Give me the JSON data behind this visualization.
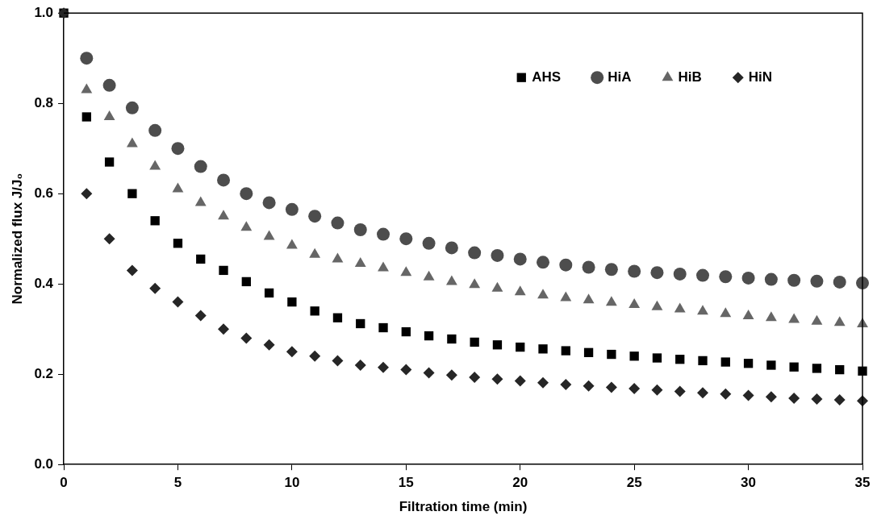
{
  "chart_data": {
    "type": "scatter",
    "xlabel": "Filtration time (min)",
    "ylabel": "Normalized flux J/J₀",
    "x": [
      0,
      1,
      2,
      3,
      4,
      5,
      6,
      7,
      8,
      9,
      10,
      11,
      12,
      13,
      14,
      15,
      16,
      17,
      18,
      19,
      20,
      21,
      22,
      23,
      24,
      25,
      26,
      27,
      28,
      29,
      30,
      31,
      32,
      33,
      34,
      35
    ],
    "series": [
      {
        "name": "AHS",
        "color": "#000000",
        "marker": "square",
        "values": [
          1.0,
          0.77,
          0.67,
          0.6,
          0.54,
          0.49,
          0.455,
          0.43,
          0.405,
          0.38,
          0.36,
          0.34,
          0.325,
          0.312,
          0.303,
          0.294,
          0.285,
          0.278,
          0.271,
          0.265,
          0.26,
          0.256,
          0.252,
          0.248,
          0.244,
          0.24,
          0.236,
          0.233,
          0.23,
          0.227,
          0.224,
          0.22,
          0.216,
          0.213,
          0.21,
          0.207
        ]
      },
      {
        "name": "HiA",
        "color": "#4d4d4d",
        "marker": "circle",
        "values": [
          null,
          0.9,
          0.84,
          0.79,
          0.74,
          0.7,
          0.66,
          0.63,
          0.6,
          0.58,
          0.565,
          0.55,
          0.535,
          0.52,
          0.51,
          0.5,
          0.49,
          0.48,
          0.469,
          0.463,
          0.455,
          0.448,
          0.442,
          0.437,
          0.432,
          0.428,
          0.425,
          0.422,
          0.419,
          0.416,
          0.413,
          0.41,
          0.408,
          0.406,
          0.404,
          0.402
        ]
      },
      {
        "name": "HiB",
        "color": "#666666",
        "marker": "triangle",
        "values": [
          null,
          0.83,
          0.77,
          0.71,
          0.66,
          0.61,
          0.58,
          0.55,
          0.525,
          0.505,
          0.485,
          0.465,
          0.455,
          0.445,
          0.435,
          0.425,
          0.415,
          0.405,
          0.398,
          0.39,
          0.382,
          0.375,
          0.369,
          0.364,
          0.359,
          0.354,
          0.349,
          0.344,
          0.339,
          0.334,
          0.329,
          0.325,
          0.321,
          0.317,
          0.314,
          0.311
        ]
      },
      {
        "name": "HiN",
        "color": "#262626",
        "marker": "diamond",
        "values": [
          1.0,
          0.6,
          0.5,
          0.43,
          0.39,
          0.36,
          0.33,
          0.3,
          0.28,
          0.265,
          0.25,
          0.24,
          0.23,
          0.22,
          0.215,
          0.21,
          0.203,
          0.198,
          0.193,
          0.189,
          0.185,
          0.181,
          0.177,
          0.174,
          0.171,
          0.168,
          0.165,
          0.162,
          0.159,
          0.156,
          0.153,
          0.15,
          0.147,
          0.145,
          0.143,
          0.141
        ]
      }
    ],
    "xlim": [
      0,
      35
    ],
    "xticks": [
      0,
      5,
      10,
      15,
      20,
      25,
      30,
      35
    ],
    "ylim": [
      0,
      1
    ],
    "yticks": [
      {
        "value": 0,
        "label": "0.0"
      },
      {
        "value": 0.2,
        "label": "0.2"
      },
      {
        "value": 0.4,
        "label": "0.4"
      },
      {
        "value": 0.6,
        "label": "0.6"
      },
      {
        "value": 0.8,
        "label": "0.8"
      },
      {
        "value": 1,
        "label": "1.0"
      }
    ],
    "grid": false,
    "legend": "top right"
  }
}
